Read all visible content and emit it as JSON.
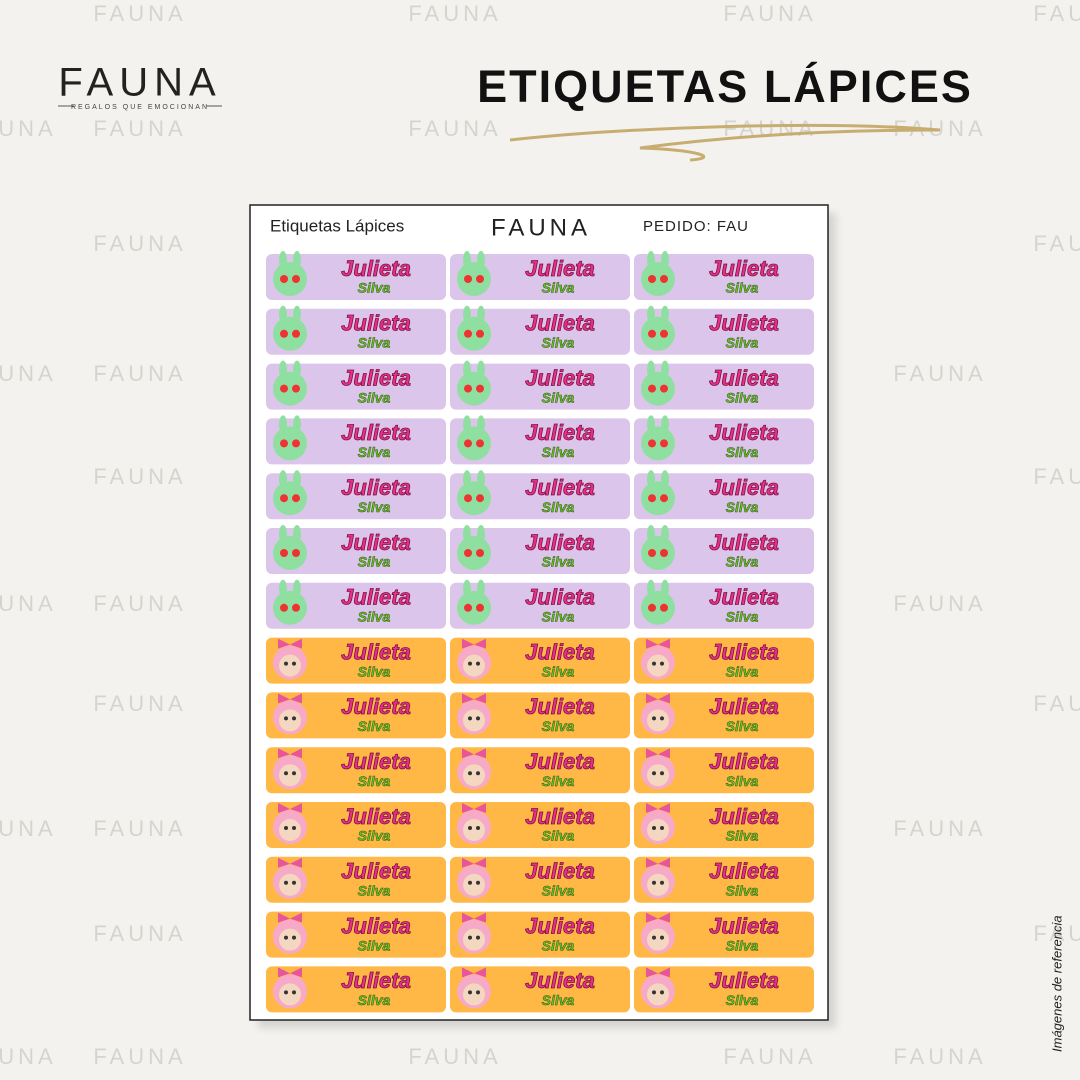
{
  "brand": {
    "logo": "FAUNA",
    "tagline": "REGALOS QUE EMOCIONAN"
  },
  "title": "ETIQUETAS LÁPICES",
  "watermark": "FAUNA",
  "side_note": "Imágenes de referencia",
  "sheet": {
    "title": "Etiquetas Lápices",
    "logo": "FAUNA",
    "order": "PEDIDO: FAU",
    "label": {
      "first_name": "Julieta",
      "last_name": "Silva"
    },
    "columns": 3,
    "designs": [
      {
        "color": "#dcc5ea",
        "character": "#8fe0a0",
        "rows": 7
      },
      {
        "color": "#ffb845",
        "character": "#f7a9c8",
        "rows": 7
      }
    ]
  }
}
